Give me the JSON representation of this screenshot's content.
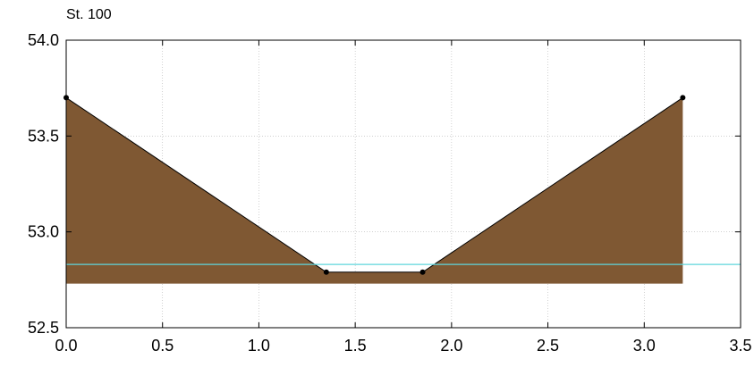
{
  "chart_data": {
    "type": "area",
    "title": "St. 100",
    "xlabel": "",
    "ylabel": "",
    "xlim": [
      0,
      3.5
    ],
    "ylim": [
      52.5,
      54.0
    ],
    "xticks": [
      "0.0",
      "0.5",
      "1.0",
      "1.5",
      "2.0",
      "2.5",
      "3.0",
      "3.5"
    ],
    "yticks": [
      "52.5",
      "53.0",
      "53.5",
      "54.0"
    ],
    "grid": true,
    "cross_section": {
      "x": [
        0.0,
        1.35,
        1.85,
        3.2
      ],
      "y": [
        53.7,
        52.79,
        52.79,
        53.7
      ]
    },
    "fill_base": 52.73,
    "water_level": 52.83,
    "colors": {
      "ground": "#7f5833",
      "water": "#5fd6dc",
      "grid": "#b4b4b4",
      "axis": "#000000"
    }
  }
}
